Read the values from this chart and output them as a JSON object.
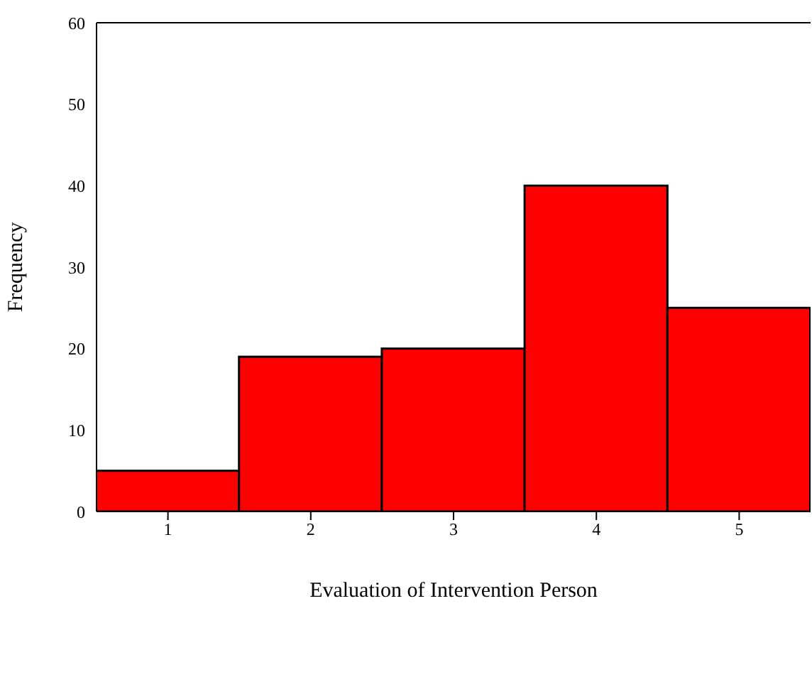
{
  "chart_data": {
    "type": "histogram",
    "xlabel": "Evaluation of Intervention Person",
    "ylabel": "Frequency",
    "bins": [
      0.5,
      1.5,
      2.5,
      3.5,
      4.5,
      5.5
    ],
    "values": [
      5,
      19,
      20,
      40,
      25
    ],
    "color": "#ff0000",
    "xlim": [
      0.5,
      5.5
    ],
    "xticks": [
      1,
      2,
      3,
      4,
      5
    ],
    "ylim": [
      0,
      60
    ],
    "yticks": [
      0,
      10,
      20,
      30,
      40,
      50,
      60
    ],
    "grid": false
  }
}
